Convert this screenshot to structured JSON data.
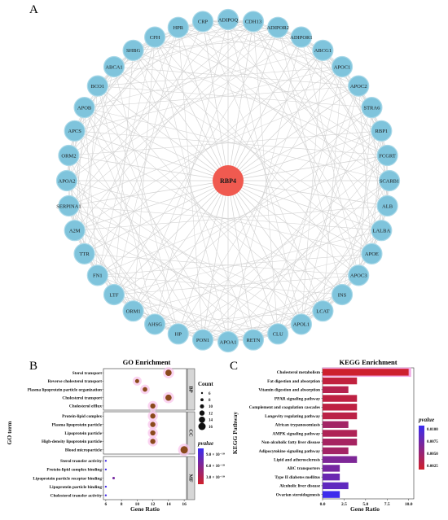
{
  "panels": {
    "a": "A",
    "b": "B",
    "c": "C"
  },
  "network": {
    "hub": "RBP4",
    "hub_color": "#f05a50",
    "node_color": "#7fc4dc",
    "edge_color": "#d2d2d2",
    "nodes": [
      "CDH13",
      "ADIPOR2",
      "ADIPOR1",
      "ABCG1",
      "APOC1",
      "APOC2",
      "STRA6",
      "RBP1",
      "FCGRT",
      "SCARB1",
      "ALB",
      "LALBA",
      "APOE",
      "APOC3",
      "INS",
      "LCAT",
      "APOL1",
      "CLU",
      "RETN",
      "APOA1",
      "PON1",
      "HP",
      "AHSG",
      "ORM1",
      "LTF",
      "FN1",
      "TTR",
      "A2M",
      "SERPINA1",
      "APOA2",
      "ORM2",
      "APCS",
      "APOB",
      "BCO1",
      "ABCA1",
      "SHBG",
      "CFH",
      "HPR",
      "CRP",
      "ADIPOQ"
    ]
  },
  "chart_data": [
    {
      "type": "scatter",
      "title": "GO Enrichment",
      "xlabel": "Gene Ratio",
      "ylabel": "GO term",
      "xticks": [
        6,
        8,
        10,
        12,
        14,
        16
      ],
      "xlim": [
        5.7,
        16.3
      ],
      "facets": [
        {
          "name": "BP",
          "terms": [
            {
              "term": "Sterol transport",
              "gene_ratio": 14,
              "count": 14,
              "pvalue_rank": 0.05
            },
            {
              "term": "Reverse cholesterol transport",
              "gene_ratio": 10,
              "count": 10,
              "pvalue_rank": 0.05
            },
            {
              "term": "Plasma lipoprotein particle organization",
              "gene_ratio": 11,
              "count": 11,
              "pvalue_rank": 0.05
            },
            {
              "term": "Cholesterol transport",
              "gene_ratio": 14,
              "count": 14,
              "pvalue_rank": 0.05
            },
            {
              "term": "Cholesterol efflux",
              "gene_ratio": 12,
              "count": 12,
              "pvalue_rank": 0.05
            }
          ]
        },
        {
          "name": "CC",
          "terms": [
            {
              "term": "Protein-lipid complex",
              "gene_ratio": 12,
              "count": 12,
              "pvalue_rank": 0.05
            },
            {
              "term": "Plasma lipoprotein particle",
              "gene_ratio": 12,
              "count": 12,
              "pvalue_rank": 0.05
            },
            {
              "term": "Lipoprotein particle",
              "gene_ratio": 12,
              "count": 12,
              "pvalue_rank": 0.05
            },
            {
              "term": "High-density lipoprotein particle",
              "gene_ratio": 12,
              "count": 12,
              "pvalue_rank": 0.05
            },
            {
              "term": "Blood microparticle",
              "gene_ratio": 16,
              "count": 16,
              "pvalue_rank": 0.05
            }
          ]
        },
        {
          "name": "MF",
          "terms": [
            {
              "term": "Sterol transfer activity",
              "gene_ratio": 6,
              "count": 6,
              "pvalue_rank": 0.95
            },
            {
              "term": "Protein-lipid complex binding",
              "gene_ratio": 6,
              "count": 6,
              "pvalue_rank": 0.95
            },
            {
              "term": "Lipoprotein particle receptor binding",
              "gene_ratio": 7,
              "count": 7,
              "pvalue_rank": 0.6
            },
            {
              "term": "Lipoprotein particle binding",
              "gene_ratio": 6,
              "count": 6,
              "pvalue_rank": 0.95
            },
            {
              "term": "Cholesterol transfer activity",
              "gene_ratio": 6,
              "count": 6,
              "pvalue_rank": 0.95
            }
          ]
        }
      ],
      "legend": {
        "size_title": "Count",
        "size_values": [
          6,
          8,
          10,
          12,
          14,
          16
        ],
        "color_title": "pvalue",
        "color_ticks": [
          "9.0 × 10⁻¹⁰",
          "6.0 × 10⁻¹⁰",
          "3.0 × 10⁻¹⁰"
        ],
        "color_high": "#3a2cf0",
        "color_low": "#d0202a",
        "dot_color": "#8a4a1c"
      }
    },
    {
      "type": "bar",
      "orientation": "horizontal",
      "title": "KEGG Enrichment",
      "xlabel": "Gene Ratio",
      "ylabel": "KEGG Pathway",
      "xticks": [
        "0.0",
        "2.5",
        "5.0",
        "7.5",
        "10.0"
      ],
      "xtick_values": [
        0,
        2.5,
        5,
        7.5,
        10
      ],
      "xlim": [
        0,
        10.6
      ],
      "categories": [
        "Cholesterol metabolism",
        "Fat digestion and absorption",
        "Vitamin digestion and absorption",
        "PPAR signaling pathway",
        "Complement and coagulation cascades",
        "Longevity regulating pathway",
        "African trypanosomiasis",
        "AMPK signaling pathway",
        "Non-alcoholic fatty liver disease",
        "Adipocytokine signaling pathway",
        "Lipid and atherosclerosis",
        "ABC transporters",
        "Type II diabetes mellitus",
        "Alcoholic liver disease",
        "Ovarian steroidogenesis"
      ],
      "values": [
        10,
        4,
        3,
        4,
        4,
        4,
        3,
        4,
        4,
        3,
        4,
        2,
        2,
        3,
        2
      ],
      "pvalue_rank": [
        0.02,
        0.1,
        0.18,
        0.12,
        0.12,
        0.14,
        0.3,
        0.22,
        0.28,
        0.3,
        0.55,
        0.6,
        0.68,
        0.75,
        0.98
      ],
      "legend": {
        "color_title": "pvalue",
        "color_ticks": [
          "0.0100",
          "0.0075",
          "0.0050",
          "0.0025"
        ],
        "color_high": "#3a2cf0",
        "color_low": "#d0202a"
      }
    }
  ]
}
